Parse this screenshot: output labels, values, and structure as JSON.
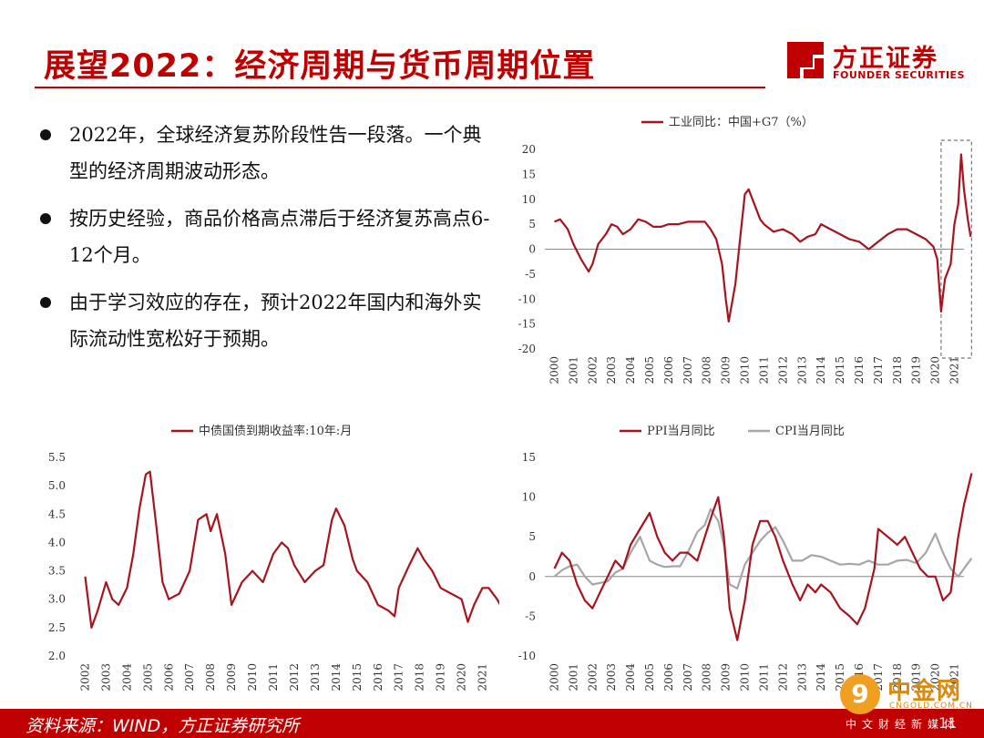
{
  "header": {
    "title": "展望2022：经济周期与货币周期位置"
  },
  "logo": {
    "cn": "方正证券",
    "en": "FOUNDER SECURITIES"
  },
  "bullets": [
    {
      "text": "2022年，全球经济复苏阶段性告一段落。一个典型的经济周期波动形态。"
    },
    {
      "text": "按历史经验，商品价格高点滞后于经济复苏高点6-12个月。"
    },
    {
      "text": "由于学习效应的存在，预计2022年国内和海外实际流动性宽松好于预期。"
    }
  ],
  "footer": {
    "source": "资料来源：WIND，方正证券研究所",
    "page": "11"
  },
  "watermark": {
    "logo_char": "9",
    "cn": "中金网",
    "url": "CNGOLD.COM.CN",
    "sub": "中文财经新媒体"
  },
  "colors": {
    "series_red": "#a8141e",
    "series_gray": "#a6a6a6",
    "brand": "#c00000"
  },
  "chart_data": [
    {
      "type": "line",
      "title": "",
      "legend_position": "top",
      "x_ticks": [
        "2000",
        "2001",
        "2002",
        "2003",
        "2004",
        "2005",
        "2006",
        "2007",
        "2008",
        "2009",
        "2010",
        "2011",
        "2012",
        "2013",
        "2014",
        "2015",
        "2016",
        "2017",
        "2018",
        "2019",
        "2020",
        "2021"
      ],
      "ylim": [
        -20,
        20
      ],
      "y_ticks": [
        20,
        15,
        10,
        5,
        0,
        -5,
        -10,
        -15,
        -20
      ],
      "highlight_box": {
        "x_from": 2020.3,
        "x_to": 2021.9
      },
      "series": [
        {
          "name": "工业同比：中国+G7（%）",
          "color": "#a8141e",
          "x": [
            2000.0,
            2000.3,
            2000.7,
            2001.0,
            2001.4,
            2001.8,
            2002.0,
            2002.3,
            2002.7,
            2003.0,
            2003.3,
            2003.6,
            2004.0,
            2004.4,
            2004.8,
            2005.2,
            2005.6,
            2006.0,
            2006.5,
            2007.0,
            2007.5,
            2007.9,
            2008.2,
            2008.5,
            2008.8,
            2009.0,
            2009.15,
            2009.5,
            2009.8,
            2010.0,
            2010.2,
            2010.5,
            2010.8,
            2011.0,
            2011.5,
            2012.0,
            2012.5,
            2012.9,
            2013.3,
            2013.7,
            2014.0,
            2014.5,
            2015.0,
            2015.5,
            2016.0,
            2016.5,
            2017.0,
            2017.5,
            2018.0,
            2018.5,
            2019.0,
            2019.5,
            2019.9,
            2020.1,
            2020.3,
            2020.5,
            2020.8,
            2021.0,
            2021.2,
            2021.35,
            2021.5,
            2021.7,
            2021.85
          ],
          "y": [
            5.5,
            6,
            4,
            1,
            -2,
            -4.5,
            -3,
            1,
            3,
            5,
            4.5,
            3,
            4,
            6,
            5.5,
            4.5,
            4.5,
            5,
            5,
            5.5,
            5.5,
            5.5,
            4,
            2,
            -3,
            -10,
            -14.5,
            -7,
            4,
            11,
            12,
            9,
            6,
            5,
            3.5,
            4,
            3,
            1.5,
            2.5,
            3,
            5,
            4,
            3,
            2,
            1.5,
            0,
            1.5,
            3,
            4,
            4,
            3,
            2,
            0.5,
            -2,
            -12.5,
            -6,
            -3,
            5,
            9,
            19,
            12,
            6,
            2.5
          ]
        }
      ]
    },
    {
      "type": "line",
      "title": "",
      "legend_position": "top",
      "x_ticks": [
        "2002",
        "2003",
        "2004",
        "2005",
        "2006",
        "2007",
        "2008",
        "2009",
        "2010",
        "2011",
        "2012",
        "2013",
        "2014",
        "2015",
        "2016",
        "2017",
        "2018",
        "2019",
        "2020",
        "2021"
      ],
      "ylim": [
        2.0,
        5.5
      ],
      "y_ticks": [
        "5.5",
        "5.0",
        "4.5",
        "4.0",
        "3.5",
        "3.0",
        "2.5",
        "2.0"
      ],
      "series": [
        {
          "name": "中债国债到期收益率:10年:月",
          "color": "#a8141e",
          "x": [
            2002.0,
            2002.3,
            2002.6,
            2003.0,
            2003.3,
            2003.6,
            2004.0,
            2004.3,
            2004.6,
            2004.9,
            2005.1,
            2005.4,
            2005.7,
            2006.0,
            2006.5,
            2007.0,
            2007.4,
            2007.8,
            2008.0,
            2008.3,
            2008.7,
            2009.0,
            2009.5,
            2010.0,
            2010.5,
            2011.0,
            2011.4,
            2011.7,
            2012.0,
            2012.5,
            2013.0,
            2013.4,
            2013.8,
            2014.0,
            2014.4,
            2014.8,
            2015.0,
            2015.5,
            2016.0,
            2016.5,
            2016.8,
            2017.0,
            2017.5,
            2017.9,
            2018.2,
            2018.6,
            2019.0,
            2019.5,
            2020.0,
            2020.3,
            2020.6,
            2021.0,
            2021.3,
            2021.7,
            2021.85
          ],
          "y": [
            3.4,
            2.5,
            2.8,
            3.3,
            3.0,
            2.9,
            3.2,
            3.8,
            4.6,
            5.2,
            5.25,
            4.3,
            3.3,
            3.0,
            3.1,
            3.5,
            4.4,
            4.5,
            4.2,
            4.5,
            3.8,
            2.9,
            3.3,
            3.5,
            3.3,
            3.8,
            4.0,
            3.9,
            3.6,
            3.3,
            3.5,
            3.6,
            4.4,
            4.6,
            4.3,
            3.7,
            3.5,
            3.3,
            2.9,
            2.8,
            2.7,
            3.2,
            3.6,
            3.9,
            3.7,
            3.5,
            3.2,
            3.1,
            3.0,
            2.6,
            2.9,
            3.2,
            3.2,
            3.0,
            2.9
          ]
        }
      ]
    },
    {
      "type": "line",
      "title": "",
      "legend_position": "top",
      "x_ticks": [
        "2000",
        "2001",
        "2002",
        "2003",
        "2004",
        "2005",
        "2006",
        "2007",
        "2008",
        "2009",
        "2010",
        "2011",
        "2012",
        "2013",
        "2014",
        "2015",
        "2016",
        "2017",
        "2018",
        "2019",
        "2020",
        "2021"
      ],
      "ylim": [
        -10,
        15
      ],
      "y_ticks": [
        15,
        10,
        5,
        0,
        -5,
        -10
      ],
      "series": [
        {
          "name": "PPI当月同比",
          "color": "#a8141e",
          "x": [
            2000.0,
            2000.4,
            2000.8,
            2001.2,
            2001.6,
            2002.0,
            2002.4,
            2002.8,
            2003.2,
            2003.6,
            2004.0,
            2004.5,
            2005.0,
            2005.4,
            2005.8,
            2006.2,
            2006.6,
            2007.0,
            2007.5,
            2007.9,
            2008.3,
            2008.6,
            2008.9,
            2009.2,
            2009.6,
            2010.0,
            2010.4,
            2010.8,
            2011.2,
            2011.6,
            2012.0,
            2012.5,
            2012.9,
            2013.3,
            2013.7,
            2014.0,
            2014.5,
            2015.0,
            2015.5,
            2015.9,
            2016.3,
            2016.8,
            2017.0,
            2017.5,
            2018.0,
            2018.4,
            2018.8,
            2019.2,
            2019.6,
            2020.0,
            2020.4,
            2020.8,
            2021.2,
            2021.5,
            2021.8,
            2021.9
          ],
          "y": [
            1,
            3,
            2,
            -1,
            -3,
            -4,
            -2,
            0,
            2,
            1,
            4,
            6,
            8,
            5,
            3,
            2,
            3,
            3,
            2,
            5,
            8,
            10,
            5,
            -4,
            -8,
            -3,
            4,
            7,
            7,
            5,
            2,
            -1,
            -3,
            -1,
            -2,
            -1,
            -2,
            -4,
            -5,
            -6,
            -4,
            1,
            6,
            5,
            4,
            5,
            3,
            1,
            0,
            0,
            -3,
            -2,
            5,
            9,
            12,
            13
          ]
        },
        {
          "name": "CPI当月同比",
          "color": "#a6a6a6",
          "x": [
            2000.0,
            2000.4,
            2000.8,
            2001.2,
            2001.6,
            2002.0,
            2002.4,
            2002.8,
            2003.2,
            2003.6,
            2004.0,
            2004.5,
            2005.0,
            2005.4,
            2005.8,
            2006.2,
            2006.6,
            2007.0,
            2007.5,
            2007.9,
            2008.2,
            2008.6,
            2008.9,
            2009.2,
            2009.6,
            2010.0,
            2010.4,
            2010.8,
            2011.2,
            2011.6,
            2012.0,
            2012.5,
            2013.0,
            2013.5,
            2014.0,
            2014.5,
            2015.0,
            2015.5,
            2016.0,
            2016.5,
            2017.0,
            2017.5,
            2018.0,
            2018.5,
            2019.0,
            2019.5,
            2020.0,
            2020.4,
            2020.8,
            2021.2,
            2021.5,
            2021.9
          ],
          "y": [
            0,
            0.8,
            1.3,
            1.5,
            0,
            -1,
            -0.8,
            -0.6,
            0.5,
            1,
            3,
            5,
            2,
            1.5,
            1.2,
            1.3,
            1.3,
            3,
            5.6,
            6.5,
            8.5,
            7,
            4,
            -1,
            -1.5,
            1.5,
            3,
            4.5,
            5.5,
            6.2,
            4.5,
            2,
            2,
            2.7,
            2.5,
            2,
            1.5,
            1.6,
            1.5,
            2,
            1.5,
            1.5,
            2,
            2.1,
            1.7,
            3,
            5.4,
            3,
            1,
            0,
            1,
            2.3
          ]
        }
      ]
    }
  ]
}
